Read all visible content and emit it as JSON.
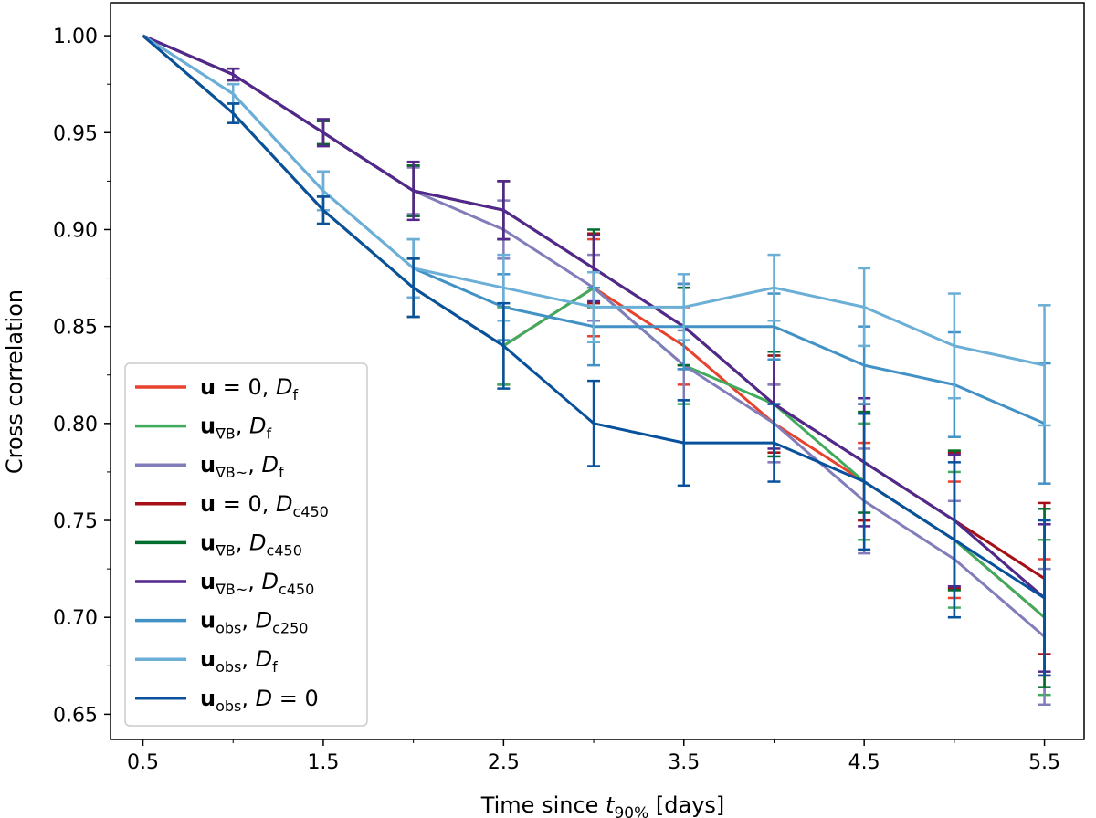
{
  "chart_data": {
    "type": "line",
    "xlabel": "Time since t_90% [days]",
    "xlabel_parts": {
      "prefix": "Time since ",
      "var": "t",
      "sub": "90%",
      "suffix": " [days]"
    },
    "ylabel": "Cross correlation",
    "xlim": [
      0.32,
      5.72
    ],
    "ylim": [
      0.637,
      1.017
    ],
    "xticks": [
      0.5,
      1.5,
      2.5,
      3.5,
      4.5,
      5.5
    ],
    "xtick_labels": [
      "0.5",
      "1.5",
      "2.5",
      "3.5",
      "4.5",
      "5.5"
    ],
    "yticks": [
      0.65,
      0.7,
      0.75,
      0.8,
      0.85,
      0.9,
      0.95,
      1.0
    ],
    "ytick_labels": [
      "0.65",
      "0.70",
      "0.75",
      "0.80",
      "0.85",
      "0.90",
      "0.95",
      "1.00"
    ],
    "x": [
      0.5,
      1.0,
      1.5,
      2.0,
      2.5,
      3.0,
      3.5,
      4.0,
      4.5,
      5.0,
      5.5
    ],
    "legend_position": "center-left",
    "series": [
      {
        "name": "u = 0, D_f",
        "bold": "u",
        "sub": "",
        "rest": " = 0, ",
        "dvar": "D",
        "dsub": "f",
        "color": "#e8412e",
        "values": [
          1.0,
          0.96,
          0.91,
          0.87,
          0.84,
          0.87,
          0.84,
          0.8,
          0.77,
          0.74,
          0.7
        ],
        "errors": [
          0,
          0.005,
          0.007,
          0.015,
          0.02,
          0.025,
          0.02,
          0.02,
          0.02,
          0.03,
          0.03
        ]
      },
      {
        "name": "u_∇B, D_f",
        "bold": "u",
        "sub": "∇B",
        "rest": ", ",
        "dvar": "D",
        "dsub": "f",
        "color": "#41ab5d",
        "values": [
          1.0,
          0.96,
          0.91,
          0.87,
          0.84,
          0.87,
          0.83,
          0.81,
          0.77,
          0.74,
          0.7
        ],
        "errors": [
          0,
          0.005,
          0.007,
          0.015,
          0.02,
          0.028,
          0.02,
          0.025,
          0.03,
          0.035,
          0.04
        ]
      },
      {
        "name": "u_∇B~, D_f",
        "bold": "u",
        "sub": "∇B~",
        "rest": ", ",
        "dvar": "D",
        "dsub": "f",
        "color": "#807dba",
        "values": [
          1.0,
          0.98,
          0.95,
          0.92,
          0.9,
          0.87,
          0.83,
          0.8,
          0.76,
          0.73,
          0.69
        ],
        "errors": [
          0,
          0.003,
          0.006,
          0.012,
          0.015,
          0.017,
          0.018,
          0.02,
          0.027,
          0.03,
          0.035
        ]
      },
      {
        "name": "u = 0, D_c450",
        "bold": "u",
        "sub": "",
        "rest": " = 0, ",
        "dvar": "D",
        "dsub": "c450",
        "color": "#a50f15",
        "values": [
          1.0,
          0.98,
          0.95,
          0.92,
          0.91,
          0.88,
          0.85,
          0.81,
          0.78,
          0.75,
          0.72
        ],
        "errors": [
          0,
          0.003,
          0.006,
          0.013,
          0.015,
          0.018,
          0.02,
          0.025,
          0.03,
          0.035,
          0.039
        ]
      },
      {
        "name": "u_∇B, D_c450",
        "bold": "u",
        "sub": "∇B",
        "rest": ", ",
        "dvar": "D",
        "dsub": "c450",
        "color": "#006d2c",
        "values": [
          1.0,
          0.98,
          0.95,
          0.92,
          0.91,
          0.88,
          0.85,
          0.81,
          0.78,
          0.75,
          0.71
        ],
        "errors": [
          0,
          0.003,
          0.006,
          0.013,
          0.015,
          0.02,
          0.02,
          0.027,
          0.026,
          0.036,
          0.046
        ]
      },
      {
        "name": "u_∇B~, D_c450",
        "bold": "u",
        "sub": "∇B~",
        "rest": ", ",
        "dvar": "D",
        "dsub": "c450",
        "color": "#54278f",
        "values": [
          1.0,
          0.98,
          0.95,
          0.92,
          0.91,
          0.88,
          0.85,
          0.81,
          0.78,
          0.75,
          0.71
        ],
        "errors": [
          0,
          0.003,
          0.007,
          0.015,
          0.015,
          0.017,
          0.022,
          0.023,
          0.033,
          0.034,
          0.038
        ]
      },
      {
        "name": "u_obs, D_c250",
        "bold": "u",
        "sub": "obs",
        "rest": ", ",
        "dvar": "D",
        "dsub": "c250",
        "color": "#4292c6",
        "values": [
          1.0,
          0.97,
          0.92,
          0.88,
          0.86,
          0.85,
          0.85,
          0.85,
          0.83,
          0.82,
          0.8
        ],
        "errors": [
          0,
          0.005,
          0.01,
          0.015,
          0.017,
          0.02,
          0.022,
          0.017,
          0.02,
          0.027,
          0.031
        ]
      },
      {
        "name": "u_obs, D_f",
        "bold": "u",
        "sub": "obs",
        "rest": ", ",
        "dvar": "D",
        "dsub": "f",
        "color": "#6baed6",
        "values": [
          1.0,
          0.97,
          0.92,
          0.88,
          0.87,
          0.86,
          0.86,
          0.87,
          0.86,
          0.84,
          0.83
        ],
        "errors": [
          0,
          0.005,
          0.01,
          0.015,
          0.017,
          0.018,
          0.017,
          0.017,
          0.02,
          0.027,
          0.031
        ]
      },
      {
        "name": "u_obs, D = 0",
        "bold": "u",
        "sub": "obs",
        "rest": ", ",
        "dvar": "D",
        "dsub": "",
        "drest": " = 0",
        "color": "#08519c",
        "values": [
          1.0,
          0.96,
          0.91,
          0.87,
          0.84,
          0.8,
          0.79,
          0.79,
          0.77,
          0.74,
          0.71
        ],
        "errors": [
          0,
          0.005,
          0.007,
          0.015,
          0.022,
          0.022,
          0.022,
          0.02,
          0.035,
          0.04,
          0.04
        ]
      }
    ]
  }
}
